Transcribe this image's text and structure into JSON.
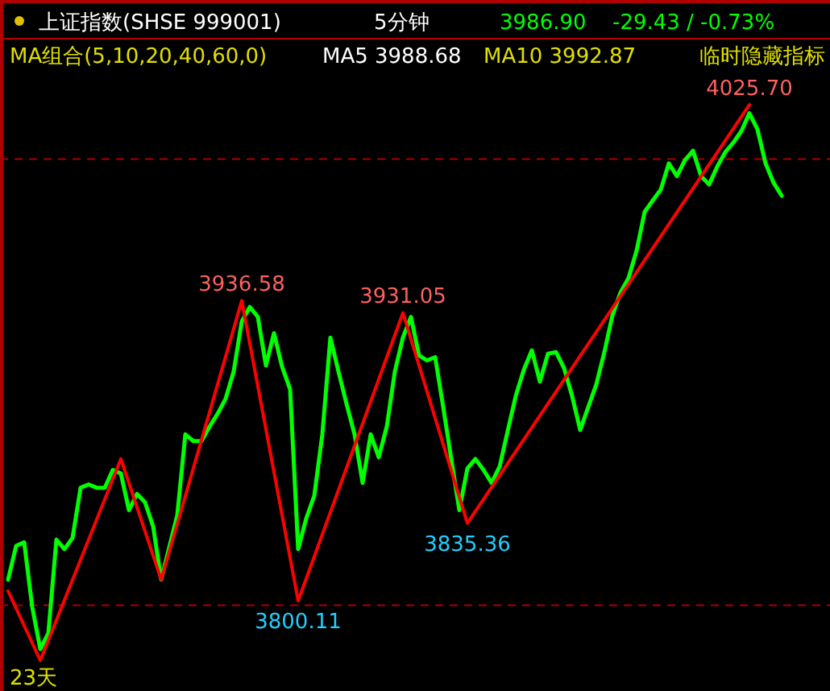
{
  "chart_data": {
    "type": "line",
    "title": "上证指数(SHSE 999001)",
    "subtitle": "5分钟",
    "categories": [
      null,
      null,
      null,
      null,
      null,
      null,
      null,
      null,
      null,
      null,
      null,
      null,
      null,
      null,
      null,
      null,
      null,
      null,
      null,
      null,
      null,
      null,
      null,
      null,
      null,
      null,
      null,
      null,
      null,
      null,
      null,
      null,
      null,
      null,
      null,
      null,
      null,
      null,
      null,
      null,
      null,
      null,
      null,
      null,
      null,
      null,
      null,
      null,
      null,
      null,
      null,
      null,
      null,
      null,
      null,
      null,
      null,
      null,
      null,
      null,
      null,
      null,
      null,
      null,
      null,
      null,
      null,
      null,
      null,
      null,
      null,
      null,
      null,
      null,
      null,
      null,
      null,
      null,
      null,
      null,
      null,
      null,
      null,
      null,
      null,
      null,
      null,
      null,
      null,
      null,
      null,
      null,
      null,
      null,
      null,
      null,
      null
    ],
    "series": [
      {
        "color": "#00ff00",
        "values": [
          3809.7,
          3825.1,
          3826.7,
          3797.3,
          3778.1,
          3785.4,
          3827.9,
          3823.6,
          3828.7,
          3851.5,
          3853.0,
          3851.5,
          3851.5,
          3859.6,
          3858.0,
          3841.3,
          3848.7,
          3844.9,
          3834.0,
          3809.7,
          3824.4,
          3839.1,
          3875.8,
          3872.7,
          3872.7,
          3879.3,
          3885.1,
          3892.0,
          3904.4,
          3927.1,
          3933.7,
          3929.2,
          3907.1,
          3921.8,
          3906.6,
          3896.3,
          3823.6,
          3837.5,
          3847.9,
          3875.8,
          3919.8,
          3904.4,
          3889.7,
          3875.8,
          3853.7,
          3875.8,
          3865.4,
          3879.3,
          3904.4,
          3919.8,
          3929.2,
          3911.7,
          3909.4,
          3910.9,
          3888.2,
          3864.6,
          3841.3,
          3860.3,
          3864.6,
          3859.6,
          3853.7,
          3861.1,
          3877.3,
          3893.2,
          3905.1,
          3914.0,
          3899.8,
          3912.5,
          3913.2,
          3905.9,
          3893.2,
          3877.8,
          3888.2,
          3898.5,
          3913.2,
          3929.9,
          3940.3,
          3946.9,
          3959.3,
          3977.0,
          3982.1,
          3987.1,
          3999.0,
          3993.2,
          4000.5,
          4004.8,
          3993.2,
          3989.4,
          3997.5,
          4004.1,
          4008.4,
          4013.7,
          4021.8,
          4014.5,
          3999.0,
          3990.2,
          3984.3
        ]
      },
      {
        "color": "#ff0000",
        "values": [
          3804.6,
          null,
          null,
          null,
          3773.0,
          null,
          null,
          null,
          null,
          null,
          null,
          null,
          null,
          null,
          3864.6,
          null,
          null,
          null,
          null,
          3809.7,
          null,
          null,
          null,
          null,
          null,
          null,
          null,
          null,
          null,
          3936.58,
          null,
          null,
          null,
          null,
          null,
          null,
          3800.11,
          null,
          null,
          null,
          null,
          null,
          null,
          null,
          null,
          null,
          null,
          null,
          null,
          3931.05,
          null,
          null,
          null,
          null,
          null,
          null,
          null,
          3835.36,
          null,
          null,
          null,
          null,
          null,
          null,
          null,
          null,
          null,
          null,
          null,
          null,
          null,
          null,
          null,
          null,
          null,
          null,
          null,
          null,
          null,
          null,
          null,
          null,
          null,
          null,
          null,
          null,
          null,
          null,
          null,
          null,
          null,
          null,
          4025.7,
          null,
          null,
          null,
          null
        ],
        "value_labels": [
          null,
          null,
          null,
          null,
          null,
          null,
          null,
          null,
          null,
          null,
          null,
          null,
          null,
          null,
          null,
          null,
          null,
          null,
          null,
          null,
          null,
          null,
          null,
          null,
          null,
          null,
          null,
          null,
          null,
          "3936.58",
          null,
          null,
          null,
          null,
          null,
          null,
          "3800.11",
          null,
          null,
          null,
          null,
          null,
          null,
          null,
          null,
          null,
          null,
          null,
          null,
          "3931.05",
          null,
          null,
          null,
          null,
          null,
          null,
          null,
          "3835.36",
          null,
          null,
          null,
          null,
          null,
          null,
          null,
          null,
          null,
          null,
          null,
          null,
          null,
          null,
          null,
          null,
          null,
          null,
          null,
          null,
          null,
          null,
          null,
          null,
          null,
          null,
          null,
          null,
          null,
          null,
          null,
          null,
          null,
          null,
          "4025.70",
          null,
          null,
          null,
          null
        ]
      }
    ],
    "ref_lines": [
      {
        "axis": "y",
        "value": 3798.1,
        "color": "#aa0000",
        "line_style": "dashed"
      },
      {
        "axis": "y",
        "value": 4001.0,
        "color": "#aa0000",
        "line_style": "dashed"
      }
    ],
    "annotations": [
      "3986.90",
      "-29.43 / -0.73%",
      "MA组合(5,10,20,40,60,0)",
      "MA5 3988.68",
      "MA10 3992.87",
      "临时隐藏指标",
      "23天"
    ]
  }
}
